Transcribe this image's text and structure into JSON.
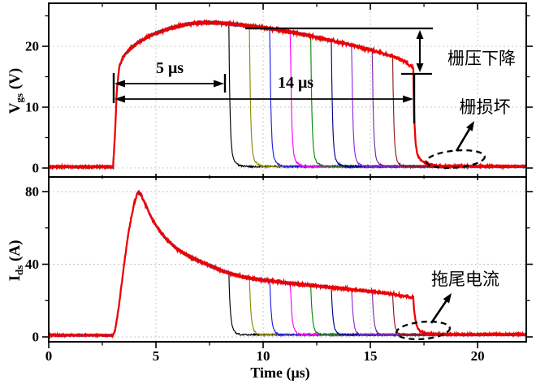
{
  "figure": {
    "background": "#ffffff",
    "axis_color": "#000000",
    "grid_color": "#c4c4c4"
  },
  "chart_data": {
    "type": "line",
    "title": "",
    "xlabel": "Time (μs)",
    "xlim": [
      0,
      22.27
    ],
    "xticks": [
      0,
      5,
      10,
      15,
      20
    ],
    "xminor": [
      2.5,
      7.5,
      12.5,
      17.5
    ],
    "grid": {
      "enabled": true,
      "style": "dashed"
    },
    "legend": "none",
    "panels": [
      {
        "name": "gate-voltage",
        "ylabel": "V_gs (V)",
        "ylabel_main": "V",
        "ylabel_sub": "gs",
        "ylabel_rest": " (V)",
        "ylim": [
          -1.47,
          27.07
        ],
        "yticks": [
          0,
          10,
          20
        ],
        "yminor": [
          5,
          15,
          25
        ],
        "envelope": [
          [
            0,
            0.2
          ],
          [
            3.0,
            0.2
          ],
          [
            3.08,
            5
          ],
          [
            3.18,
            13
          ],
          [
            3.3,
            16.8
          ],
          [
            3.5,
            18.4
          ],
          [
            3.8,
            19.6
          ],
          [
            4.2,
            20.7
          ],
          [
            4.7,
            21.7
          ],
          [
            5.2,
            22.4
          ],
          [
            5.8,
            23.1
          ],
          [
            6.4,
            23.6
          ],
          [
            7.0,
            23.85
          ],
          [
            7.6,
            23.9
          ],
          [
            8.2,
            23.75
          ],
          [
            8.8,
            23.55
          ],
          [
            9.4,
            23.35
          ],
          [
            10.0,
            23.05
          ],
          [
            10.6,
            22.75
          ],
          [
            11.2,
            22.4
          ],
          [
            12.0,
            21.85
          ],
          [
            12.8,
            21.25
          ],
          [
            13.6,
            20.6
          ],
          [
            14.4,
            19.95
          ],
          [
            15.2,
            19.2
          ],
          [
            16.0,
            18.4
          ],
          [
            16.6,
            17.5
          ],
          [
            17.0,
            16.4
          ]
        ],
        "fall_normal": {
          "a": 0.9,
          "tau1": 0.055,
          "tau2": 0.3,
          "floor": 0.25
        },
        "fall_damaged": {
          "a": 0.85,
          "tau1": 0.06,
          "tau2": 0.55,
          "floor": 0.3
        },
        "noise_on": 0.42,
        "noise_off": 0.3
      },
      {
        "name": "drain-current",
        "ylabel": "I_ds (A)",
        "ylabel_main": "I",
        "ylabel_sub": "ds",
        "ylabel_rest": " (A)",
        "ylim": [
          -2.68,
          88.04
        ],
        "yticks": [
          0,
          40,
          80
        ],
        "yminor": [
          20,
          60
        ],
        "envelope": [
          [
            0,
            0.9
          ],
          [
            3.0,
            0.9
          ],
          [
            3.1,
            4
          ],
          [
            3.25,
            15
          ],
          [
            3.45,
            34
          ],
          [
            3.65,
            52
          ],
          [
            3.85,
            66
          ],
          [
            4.0,
            74
          ],
          [
            4.15,
            79.5
          ],
          [
            4.3,
            78.5
          ],
          [
            4.5,
            73
          ],
          [
            4.8,
            65.5
          ],
          [
            5.1,
            59.5
          ],
          [
            5.5,
            53.5
          ],
          [
            6.0,
            48.3
          ],
          [
            6.5,
            44.6
          ],
          [
            7.0,
            41.8
          ],
          [
            7.5,
            39.3
          ],
          [
            8.0,
            36.8
          ],
          [
            8.5,
            34.8
          ],
          [
            9.0,
            33.2
          ],
          [
            9.6,
            32.0
          ],
          [
            10.2,
            31.0
          ],
          [
            11.0,
            29.9
          ],
          [
            12.0,
            28.7
          ],
          [
            13.0,
            27.5
          ],
          [
            14.0,
            26.3
          ],
          [
            15.0,
            25.0
          ],
          [
            16.0,
            23.6
          ],
          [
            16.6,
            22.6
          ],
          [
            17.0,
            21.9
          ]
        ],
        "fall_normal": {
          "a": 0.88,
          "tau1": 0.07,
          "tau2": 0.45,
          "floor": 1.2
        },
        "fall_damaged": {
          "a": 0.82,
          "tau1": 0.09,
          "tau2": 0.9,
          "floor": 1.5
        },
        "noise_on": 1.4,
        "noise_off": 0.9
      }
    ],
    "pulse_start_us": 3.05,
    "traces": [
      {
        "name": "pulse-1",
        "color": "#000000",
        "fall": 8.4
      },
      {
        "name": "pulse-2",
        "color": "#8B8B00",
        "fall": 9.36
      },
      {
        "name": "pulse-3",
        "color": "#1F1FE8",
        "fall": 10.31
      },
      {
        "name": "pulse-4",
        "color": "#FF00FF",
        "fall": 11.27
      },
      {
        "name": "pulse-5",
        "color": "#0A8A0A",
        "fall": 12.22
      },
      {
        "name": "pulse-6",
        "color": "#00008B",
        "fall": 13.18
      },
      {
        "name": "pulse-7",
        "color": "#8A2BE2",
        "fall": 14.13
      },
      {
        "name": "pulse-8",
        "color": "#7D26A8",
        "fall": 15.09
      },
      {
        "name": "pulse-9",
        "color": "#8B1A1A",
        "fall": 16.04
      },
      {
        "name": "pulse-10",
        "color": "#EE0000",
        "fall": 17.0,
        "damaged": true
      }
    ],
    "annotations": {
      "five": {
        "text": "5 μs"
      },
      "fourteen": {
        "text": "14 μs"
      },
      "droop": {
        "text": "栅压下降"
      },
      "damage": {
        "text": "栅损坏"
      },
      "tail": {
        "text": "拖尾电流"
      }
    }
  }
}
